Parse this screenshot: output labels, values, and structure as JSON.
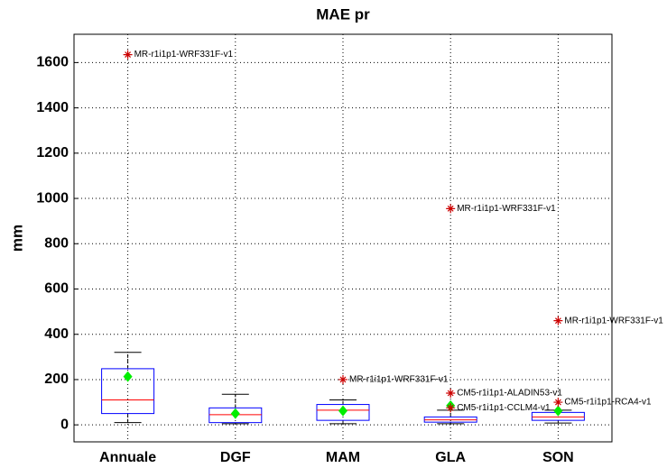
{
  "chart_data": {
    "type": "box",
    "title": "MAE pr",
    "ylabel": "mm",
    "categories": [
      "Annuale",
      "DGF",
      "MAM",
      "GLA",
      "SON"
    ],
    "boxes": [
      {
        "whislo": 10,
        "q1": 50,
        "med": 110,
        "q3": 248,
        "whishi": 320,
        "mean": 213,
        "outliers": [
          {
            "value": 1635,
            "label": "MR-r1i1p1-WRF331F-v1"
          }
        ]
      },
      {
        "whislo": 5,
        "q1": 10,
        "med": 45,
        "q3": 75,
        "whishi": 135,
        "mean": 50,
        "outliers": []
      },
      {
        "whislo": 5,
        "q1": 20,
        "med": 65,
        "q3": 90,
        "whishi": 110,
        "mean": 62,
        "outliers": [
          {
            "value": 200,
            "label": "MR-r1i1p1-WRF331F-v1"
          }
        ]
      },
      {
        "whislo": 5,
        "q1": 12,
        "med": 22,
        "q3": 35,
        "whishi": 65,
        "mean": 85,
        "outliers": [
          {
            "value": 955,
            "label": "MR-r1i1p1-WRF331F-v1"
          },
          {
            "value": 140,
            "label": "CM5-r1i1p1-ALADIN53-v1"
          },
          {
            "value": 75,
            "label": "CM5-r1i1p1-CCLM4-v1"
          }
        ]
      },
      {
        "whislo": 8,
        "q1": 20,
        "med": 35,
        "q3": 55,
        "whishi": 65,
        "mean": 62,
        "outliers": [
          {
            "value": 460,
            "label": "MR-r1i1p1-WRF331F-v1"
          },
          {
            "value": 100,
            "label": "CM5-r1i1p1-RCA4-v1"
          }
        ]
      }
    ],
    "box_color": "#0000ff",
    "median_color": "#ff0000",
    "mean_color": "#00ee00",
    "outlier_color": "#cc0000",
    "ylim": [
      -75,
      1725
    ],
    "yticks": [
      0,
      200,
      400,
      600,
      800,
      1000,
      1200,
      1400,
      1600
    ],
    "grid": true
  }
}
